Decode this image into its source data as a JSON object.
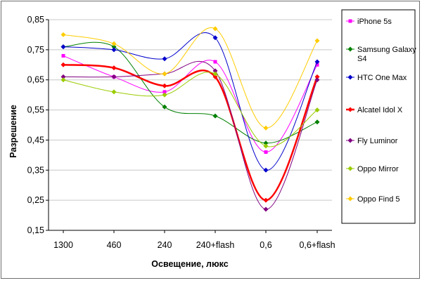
{
  "chart_data": {
    "type": "line",
    "title": "",
    "xlabel": "Освещение, люкс",
    "ylabel": "Разрешение",
    "categories": [
      "1300",
      "460",
      "240",
      "240+flash",
      "0,6",
      "0,6+flash"
    ],
    "ylim": [
      0.15,
      0.85
    ],
    "yticks": [
      "0,15",
      "0,25",
      "0,35",
      "0,45",
      "0,55",
      "0,65",
      "0,75",
      "0,85"
    ],
    "grid": "horizontal",
    "legend_position": "right",
    "smooth": true,
    "series": [
      {
        "name": "iPhone 5s",
        "color": "#ff00ff",
        "marker": "square",
        "values": [
          0.73,
          0.66,
          0.61,
          0.71,
          0.41,
          0.7
        ]
      },
      {
        "name": "Samsung Galaxy S4",
        "color": "#008000",
        "marker": "diamond",
        "values": [
          0.76,
          0.76,
          0.56,
          0.53,
          0.44,
          0.51
        ]
      },
      {
        "name": "HTC One Max",
        "color": "#0000cc",
        "marker": "diamond",
        "values": [
          0.76,
          0.75,
          0.72,
          0.79,
          0.35,
          0.71
        ]
      },
      {
        "name": "Alcatel Idol X",
        "color": "#ff0000",
        "marker": "diamond",
        "values": [
          0.7,
          0.69,
          0.63,
          0.66,
          0.25,
          0.66
        ]
      },
      {
        "name": "Fly Luminor",
        "color": "#800080",
        "marker": "diamond",
        "values": [
          0.66,
          0.66,
          0.67,
          0.68,
          0.22,
          0.65
        ]
      },
      {
        "name": "Oppo Mirror",
        "color": "#99cc00",
        "marker": "diamond",
        "values": [
          0.65,
          0.61,
          0.6,
          0.67,
          0.43,
          0.55
        ]
      },
      {
        "name": "Oppo Find 5",
        "color": "#ffcc00",
        "marker": "diamond",
        "values": [
          0.8,
          0.77,
          0.67,
          0.82,
          0.49,
          0.78
        ]
      }
    ]
  }
}
